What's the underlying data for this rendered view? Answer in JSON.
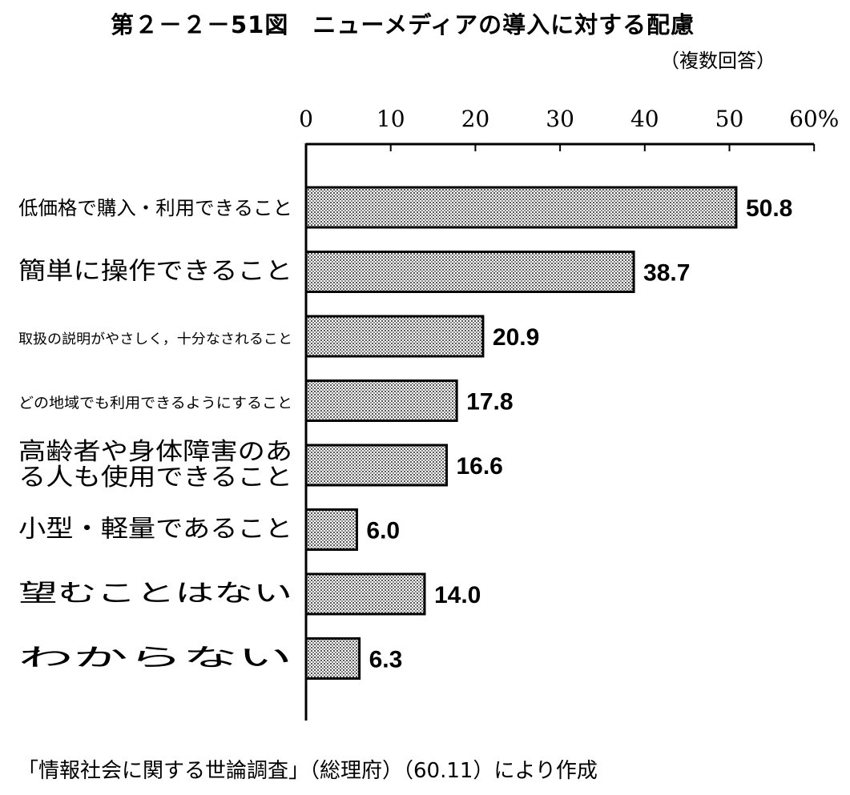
{
  "figure": {
    "title": "第２－２－51図　ニューメディアの導入に対する配慮",
    "subtitle": "（複数回答）",
    "source": "「情報社会に関する世論調査」（総理府）（60.11）により作成"
  },
  "chart_data": {
    "type": "bar",
    "orientation": "horizontal",
    "x_unit": "%",
    "x_ticks": [
      "0",
      "10",
      "20",
      "30",
      "40",
      "50",
      "60%"
    ],
    "xlim": [
      0,
      60
    ],
    "grid": false,
    "categories": [
      "低価格で購入・利用できること",
      "簡単に操作できること",
      "取扱の説明がやさしく，十分なされること",
      "どの地域でも利用できるようにすること",
      "高齢者や身体障害のある人も使用できること",
      "小型・軽量であること",
      "望むことはない",
      "わからない"
    ],
    "category_lines": [
      [
        "低価格で購入・利用できること"
      ],
      [
        "簡単に操作できること"
      ],
      [
        "取扱の説明がやさしく，十分なされること"
      ],
      [
        "どの地域でも利用できるようにすること"
      ],
      [
        "高齢者や身体障害のあ",
        "る人も使用できること"
      ],
      [
        "小型・軽量であること"
      ],
      [
        "望むことはない"
      ],
      [
        "わからない"
      ]
    ],
    "values": [
      50.8,
      38.7,
      20.9,
      17.8,
      16.6,
      6.0,
      14.0,
      6.3
    ],
    "value_labels": [
      "50.8",
      "38.7",
      "20.9",
      "17.8",
      "16.6",
      "6.0",
      "14.0",
      "6.3"
    ],
    "bar_color": "#cfcfcf",
    "bar_outline_color": "#000000"
  }
}
